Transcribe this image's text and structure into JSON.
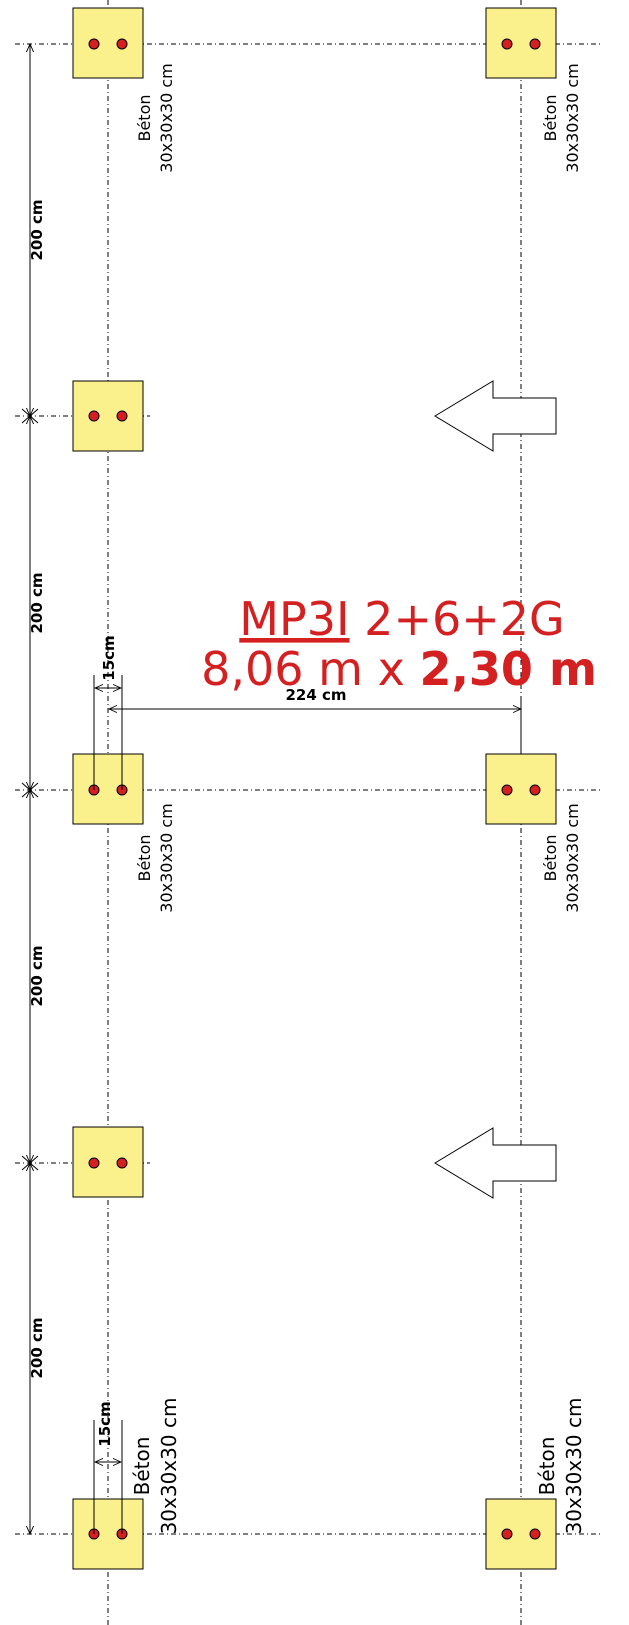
{
  "colors": {
    "pad_fill": "#faf08c",
    "pad_stroke": "#000000",
    "bolt": "#d42020",
    "title": "#d42020"
  },
  "labels": {
    "spacing": "200 cm",
    "width_dim": "224 cm",
    "offset_dim": "15cm",
    "material_line1": "Béton",
    "material_line2": "30x30x30 cm"
  },
  "title": {
    "model": "MP3I",
    "config": "2+6+2G",
    "length": "8,06 m",
    "times": "x",
    "width": "2,30 m"
  },
  "icons": {
    "arrow": "left-arrow-icon",
    "bolt": "anchor-bolt-icon"
  }
}
